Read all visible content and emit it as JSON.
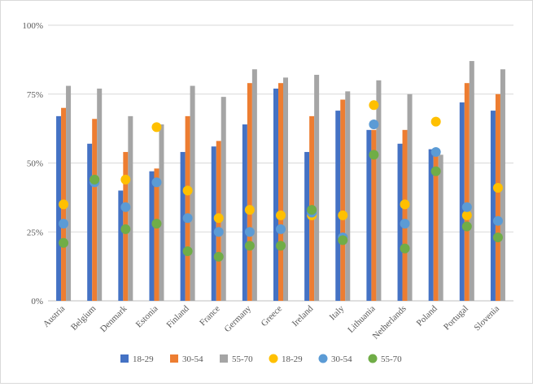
{
  "chart_data": {
    "type": "bar",
    "title": "",
    "xlabel": "",
    "ylabel": "",
    "ylim": [
      0,
      100
    ],
    "yticks": [
      "0%",
      "25%",
      "50%",
      "75%",
      "100%"
    ],
    "ytick_values": [
      0,
      25,
      50,
      75,
      100
    ],
    "grid": "horizontal",
    "legend_position": "bottom",
    "categories": [
      "Austria",
      "Belgium",
      "Denmark",
      "Estonia",
      "Finland",
      "France",
      "Germany",
      "Greece",
      "Ireland",
      "Italy",
      "Lithuania",
      "Netherlands",
      "Poland",
      "Portugal",
      "Slovenia"
    ],
    "series": [
      {
        "name": "18-29",
        "kind": "bar",
        "color": "#4472c4",
        "values": [
          67,
          57,
          40,
          47,
          54,
          56,
          64,
          77,
          54,
          69,
          62,
          57,
          55,
          72,
          69
        ]
      },
      {
        "name": "30-54",
        "kind": "bar",
        "color": "#ed7d31",
        "values": [
          70,
          66,
          54,
          48,
          67,
          58,
          79,
          79,
          67,
          73,
          62,
          62,
          54,
          79,
          75
        ]
      },
      {
        "name": "55-70",
        "kind": "bar",
        "color": "#a5a5a5",
        "values": [
          78,
          77,
          67,
          64,
          78,
          74,
          84,
          81,
          82,
          76,
          80,
          75,
          53,
          87,
          84
        ]
      },
      {
        "name": "18-29",
        "kind": "point",
        "color": "#ffc000",
        "values": [
          35,
          44,
          44,
          63,
          40,
          30,
          33,
          31,
          31,
          31,
          71,
          35,
          65,
          31,
          41
        ]
      },
      {
        "name": "30-54",
        "kind": "point",
        "color": "#5b9bd5",
        "values": [
          28,
          43,
          34,
          43,
          30,
          25,
          25,
          26,
          32,
          23,
          64,
          28,
          54,
          34,
          29
        ]
      },
      {
        "name": "55-70",
        "kind": "point",
        "color": "#70ad47",
        "values": [
          21,
          44,
          26,
          28,
          18,
          16,
          20,
          20,
          33,
          22,
          53,
          19,
          47,
          27,
          23
        ]
      }
    ]
  }
}
